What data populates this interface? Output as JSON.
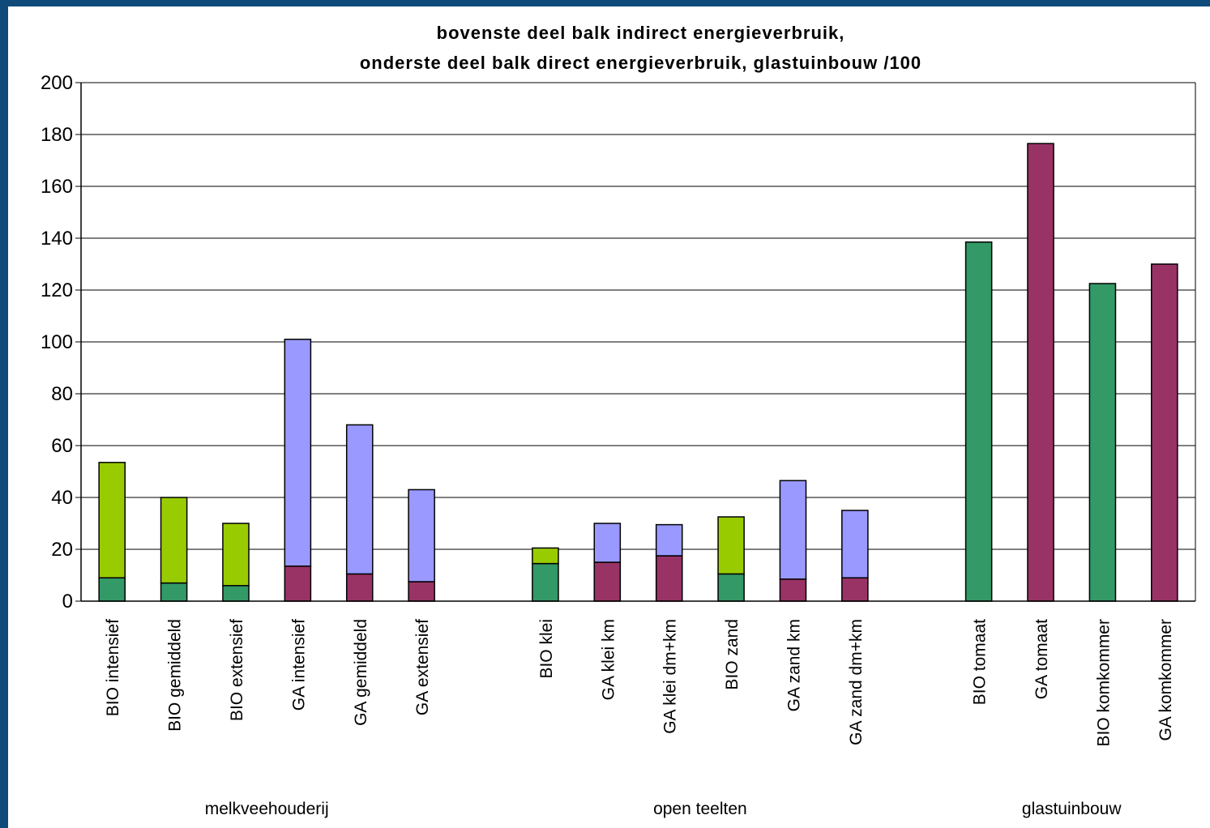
{
  "chart_data": {
    "type": "bar",
    "stacked": true,
    "title_lines": [
      "bovenste deel balk indirect energieverbruik,",
      "onderste deel balk direct energieverbruik, glastuinbouw /100"
    ],
    "ylim": [
      0,
      200
    ],
    "yticks": [
      0,
      20,
      40,
      60,
      80,
      100,
      120,
      140,
      160,
      180,
      200
    ],
    "grid": true,
    "colors": {
      "direct_bio": "#339966",
      "direct_ga": "#993366",
      "indirect_bio": "#99cc00",
      "indirect_ga": "#9999ff",
      "gridline": "#000000",
      "frame_background": "#0f4b7a"
    },
    "groups": [
      {
        "name": "melkveehouderij",
        "bars": [
          {
            "label": "BIO intensief",
            "direct": 9,
            "indirect": 44.5,
            "kind": "bio"
          },
          {
            "label": "BIO gemiddeld",
            "direct": 7,
            "indirect": 33,
            "kind": "bio"
          },
          {
            "label": "BIO extensief",
            "direct": 6,
            "indirect": 24,
            "kind": "bio"
          },
          {
            "label": "GA intensief",
            "direct": 13.5,
            "indirect": 87.5,
            "kind": "ga"
          },
          {
            "label": "GA gemiddeld",
            "direct": 10.5,
            "indirect": 57.5,
            "kind": "ga"
          },
          {
            "label": "GA extensief",
            "direct": 7.5,
            "indirect": 35.5,
            "kind": "ga"
          }
        ]
      },
      {
        "name": "open teelten",
        "bars": [
          {
            "label": "BIO klei",
            "direct": 14.5,
            "indirect": 6,
            "kind": "bio"
          },
          {
            "label": "GA klei km",
            "direct": 15,
            "indirect": 15,
            "kind": "ga"
          },
          {
            "label": "GA klei dm+km",
            "direct": 17.5,
            "indirect": 12,
            "kind": "ga"
          },
          {
            "label": "BIO zand",
            "direct": 10.5,
            "indirect": 22,
            "kind": "bio"
          },
          {
            "label": "GA zand km",
            "direct": 8.5,
            "indirect": 38,
            "kind": "ga"
          },
          {
            "label": "GA zand dm+km",
            "direct": 9,
            "indirect": 26,
            "kind": "ga"
          }
        ]
      },
      {
        "name": "glastuinbouw",
        "bars": [
          {
            "label": "BIO tomaat",
            "direct": 138.5,
            "indirect": 0,
            "kind": "bio"
          },
          {
            "label": "GA tomaat",
            "direct": 176.5,
            "indirect": 0,
            "kind": "ga"
          },
          {
            "label": "BIO komkommer",
            "direct": 122.5,
            "indirect": 0,
            "kind": "bio"
          },
          {
            "label": "GA komkommer",
            "direct": 130,
            "indirect": 0,
            "kind": "ga"
          }
        ]
      }
    ]
  }
}
